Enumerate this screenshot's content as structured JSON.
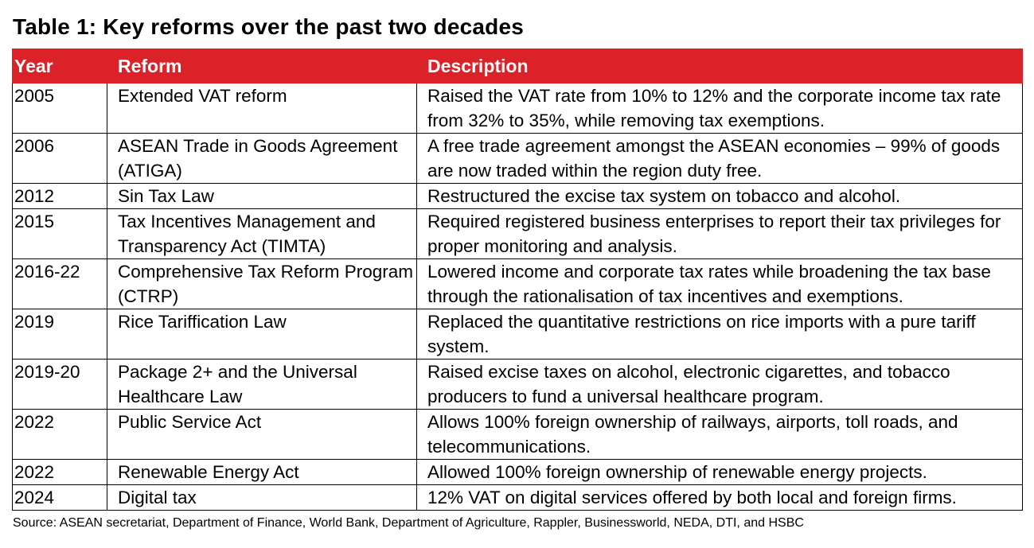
{
  "title": "Table 1: Key reforms over the past two decades",
  "headers": {
    "year": "Year",
    "reform": "Reform",
    "description": "Description"
  },
  "rows": [
    {
      "year": "2005",
      "reform": "Extended VAT reform",
      "description": "Raised the VAT rate from 10% to 12% and the corporate income tax rate from 32% to 35%, while removing tax exemptions."
    },
    {
      "year": "2006",
      "reform": "ASEAN Trade in Goods Agreement (ATIGA)",
      "description": "A free trade agreement amongst the ASEAN economies – 99% of goods are now traded within the region duty free."
    },
    {
      "year": "2012",
      "reform": "Sin Tax Law",
      "description": "Restructured the excise tax system on tobacco and alcohol."
    },
    {
      "year": "2015",
      "reform": "Tax Incentives Management and Transparency Act (TIMTA)",
      "description": "Required registered business enterprises to report their tax privileges for proper monitoring and analysis."
    },
    {
      "year": "2016-22",
      "reform": "Comprehensive Tax Reform Program (CTRP)",
      "description": "Lowered income and corporate tax rates while broadening the tax base through the rationalisation of tax incentives and exemptions."
    },
    {
      "year": "2019",
      "reform": "Rice Tariffication Law",
      "description": "Replaced the quantitative restrictions on rice imports with a pure tariff system."
    },
    {
      "year": "2019-20",
      "reform": "Package 2+ and the Universal Healthcare Law",
      "description": "Raised excise taxes on alcohol, electronic cigarettes, and tobacco producers to fund a universal healthcare program."
    },
    {
      "year": "2022",
      "reform": "Public Service Act",
      "description": "Allows 100% foreign ownership of railways, airports, toll roads, and telecommunications."
    },
    {
      "year": "2022",
      "reform": "Renewable Energy Act",
      "description": "Allowed 100% foreign ownership of renewable energy projects."
    },
    {
      "year": "2024",
      "reform": "Digital tax",
      "description": "12% VAT on digital services offered by both local and foreign firms."
    }
  ],
  "source": "Source: ASEAN secretariat, Department of Finance, World Bank, Department of Agriculture, Rappler, Businessworld, NEDA, DTI, and HSBC",
  "colors": {
    "header_background": "#db2228",
    "header_text": "#ffffff"
  }
}
